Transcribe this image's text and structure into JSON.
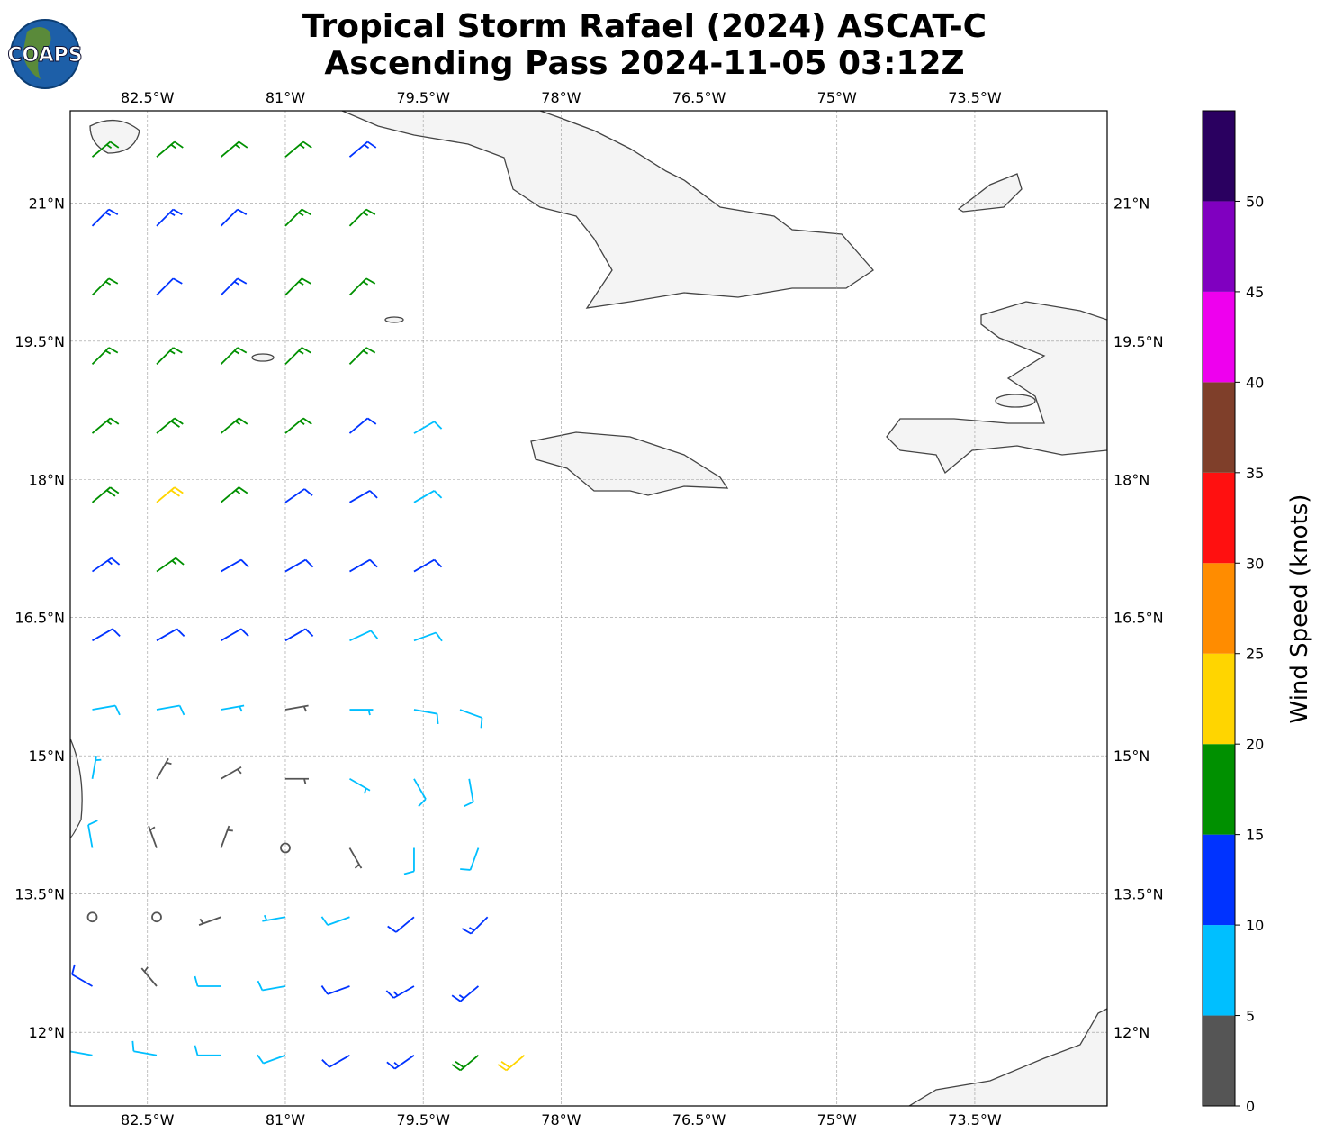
{
  "logo": "COAPS",
  "title": [
    "Tropical Storm Rafael (2024) ASCAT-C",
    "Ascending Pass 2024-11-05 03:12Z"
  ],
  "map": {
    "xlim": [
      -83.34,
      -72.06
    ],
    "ylim": [
      11.2,
      22.0
    ],
    "xticks": [
      {
        "value": -82.5,
        "label": "82.5°W"
      },
      {
        "value": -81,
        "label": "81°W"
      },
      {
        "value": -79.5,
        "label": "79.5°W"
      },
      {
        "value": -78,
        "label": "78°W"
      },
      {
        "value": -76.5,
        "label": "76.5°W"
      },
      {
        "value": -75,
        "label": "75°W"
      },
      {
        "value": -73.5,
        "label": "73.5°W"
      }
    ],
    "yticks": [
      {
        "value": 12,
        "label": "12°N"
      },
      {
        "value": 13.5,
        "label": "13.5°N"
      },
      {
        "value": 15,
        "label": "15°N"
      },
      {
        "value": 16.5,
        "label": "16.5°N"
      },
      {
        "value": 18,
        "label": "18°N"
      },
      {
        "value": 19.5,
        "label": "19.5°N"
      },
      {
        "value": 21,
        "label": "21°N"
      }
    ]
  },
  "colorbar": {
    "label": "Wind Speed (knots)",
    "clim": [
      0,
      55
    ],
    "bounds": [
      0,
      5,
      10,
      15,
      20,
      25,
      30,
      35,
      40,
      45,
      50,
      55
    ],
    "colors": [
      "#555555",
      "#00bfff",
      "#0033ff",
      "#009000",
      "#ffd500",
      "#ff8c00",
      "#ff1010",
      "#7f3f2a",
      "#ee00ee",
      "#8000c0",
      "#2a0060"
    ],
    "ticks": [
      0,
      5,
      10,
      15,
      20,
      25,
      30,
      35,
      40,
      45,
      50
    ]
  },
  "barbs": {
    "lon": [
      -83.1,
      -82.4,
      -81.7,
      -81.0,
      -80.3,
      -83.1,
      -82.4,
      -81.7,
      -81.0,
      -80.3,
      -83.1,
      -82.4,
      -81.7,
      -81.0,
      -80.3,
      -83.1,
      -82.4,
      -81.7,
      -81.0,
      -80.3,
      -83.1,
      -82.4,
      -81.7,
      -81.0,
      -80.3,
      -79.6,
      -83.1,
      -82.4,
      -81.7,
      -81.0,
      -80.3,
      -79.6,
      -83.1,
      -82.4,
      -81.7,
      -81.0,
      -80.3,
      -79.6,
      -83.1,
      -82.4,
      -81.7,
      -81.0,
      -80.3,
      -79.6,
      -83.1,
      -82.4,
      -81.7,
      -81.0,
      -80.3,
      -79.6,
      -79.1,
      -83.1,
      -82.4,
      -81.7,
      -81.0,
      -80.3,
      -79.6,
      -79.0,
      -83.1,
      -82.4,
      -81.7,
      -81.0,
      -80.3,
      -79.6,
      -78.9,
      -83.1,
      -82.4,
      -81.7,
      -81.0,
      -80.3,
      -79.6,
      -78.8,
      -83.1,
      -82.4,
      -81.7,
      -81.0,
      -80.3,
      -79.6,
      -78.9,
      -83.1,
      -82.4,
      -81.7,
      -81.0,
      -80.3,
      -79.6,
      -78.9,
      -78.4
    ],
    "lat": [
      21.5,
      21.5,
      21.5,
      21.5,
      21.5,
      20.75,
      20.75,
      20.75,
      20.75,
      20.75,
      20.0,
      20.0,
      20.0,
      20.0,
      20.0,
      19.25,
      19.25,
      19.25,
      19.25,
      19.25,
      18.5,
      18.5,
      18.5,
      18.5,
      18.5,
      18.5,
      17.75,
      17.75,
      17.75,
      17.75,
      17.75,
      17.75,
      17.0,
      17.0,
      17.0,
      17.0,
      17.0,
      17.0,
      16.25,
      16.25,
      16.25,
      16.25,
      16.25,
      16.25,
      15.5,
      15.5,
      15.5,
      15.5,
      15.5,
      15.5,
      15.5,
      14.75,
      14.75,
      14.75,
      14.75,
      14.75,
      14.75,
      14.75,
      14.0,
      14.0,
      14.0,
      14.0,
      14.0,
      14.0,
      14.0,
      13.25,
      13.25,
      13.25,
      13.25,
      13.25,
      13.25,
      13.25,
      12.5,
      12.5,
      12.5,
      12.5,
      12.5,
      12.5,
      12.5,
      11.75,
      11.75,
      11.75,
      11.75,
      11.75,
      11.75,
      11.75,
      11.75
    ],
    "speed": [
      16,
      17,
      16,
      17,
      13,
      13,
      13,
      12,
      16,
      17,
      17,
      12,
      13,
      16,
      17,
      17,
      17,
      16,
      17,
      16,
      17,
      18,
      17,
      16,
      12,
      8,
      18,
      21,
      16,
      12,
      11,
      9,
      13,
      17,
      12,
      11,
      12,
      11,
      12,
      12,
      11,
      11,
      9,
      9,
      8,
      8,
      7,
      4,
      7,
      8,
      9,
      7,
      4,
      3,
      3,
      6,
      8,
      9,
      8,
      4,
      3,
      0,
      3,
      8,
      9,
      2,
      0,
      3,
      7,
      9,
      12,
      13,
      12,
      4,
      8,
      9,
      10,
      13,
      14,
      8,
      8,
      9,
      9,
      12,
      14,
      18,
      22
    ],
    "direction": [
      50,
      50,
      50,
      50,
      50,
      45,
      45,
      45,
      45,
      45,
      45,
      45,
      45,
      45,
      45,
      45,
      45,
      45,
      45,
      45,
      50,
      50,
      50,
      50,
      50,
      60,
      50,
      50,
      50,
      55,
      60,
      60,
      55,
      55,
      60,
      60,
      60,
      60,
      60,
      60,
      60,
      60,
      65,
      70,
      80,
      80,
      80,
      80,
      90,
      100,
      110,
      10,
      30,
      60,
      90,
      120,
      150,
      170,
      350,
      340,
      20,
      0,
      150,
      180,
      200,
      330,
      0,
      250,
      260,
      250,
      230,
      225,
      300,
      320,
      270,
      260,
      250,
      240,
      230,
      280,
      280,
      270,
      250,
      240,
      235,
      230,
      230
    ]
  }
}
